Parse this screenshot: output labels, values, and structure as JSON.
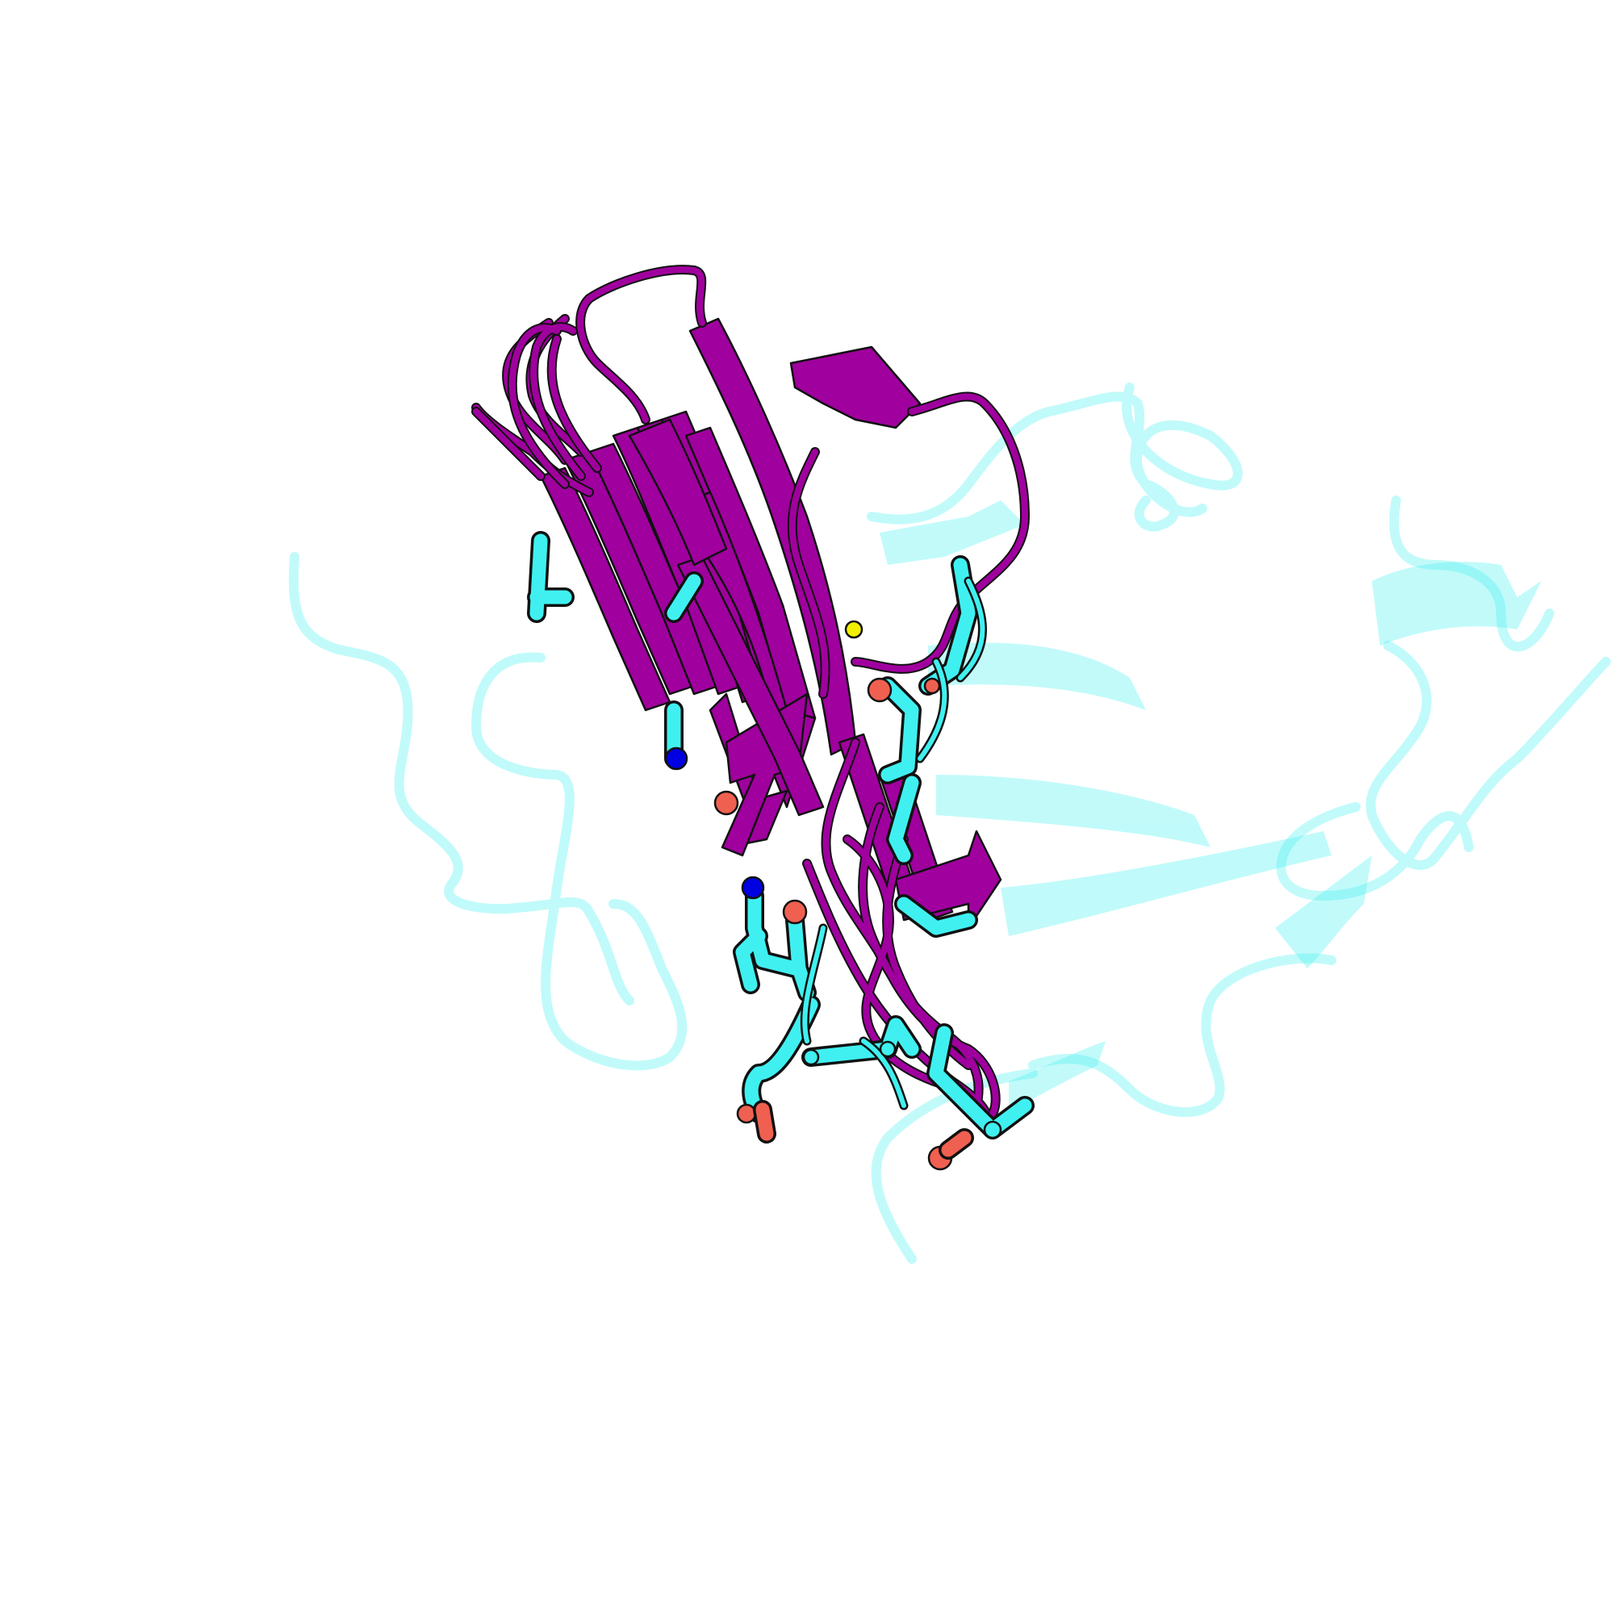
{
  "scene": {
    "background": "#ffffff",
    "render_style": "cartoon",
    "colors": {
      "chain_primary": "#a0009e",
      "chain_secondary": "#40f0f0",
      "oxygen": "#f06050",
      "nitrogen": "#0000e0",
      "sulfur": "#f0f000",
      "outline": "#111111"
    },
    "elements": {
      "primary_ensemble": "beta-sheet-ribbons",
      "secondary_chain": "faded-ribbon",
      "sidechains": "stick-residues"
    }
  }
}
